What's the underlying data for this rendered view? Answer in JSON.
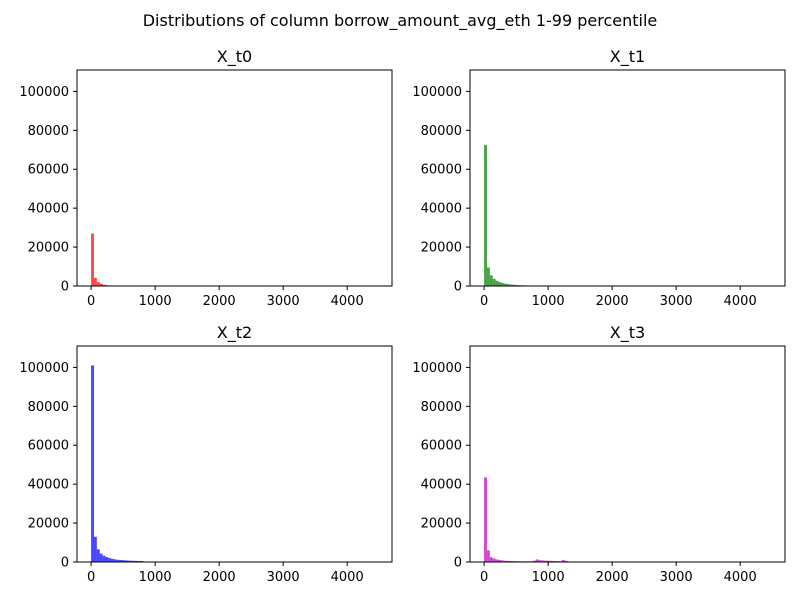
{
  "chart_data": {
    "title": "Distributions of column borrow_amount_avg_eth 1-99 percentile",
    "type": "bar",
    "xlim": [
      -220,
      4700
    ],
    "ylim": [
      0,
      111000
    ],
    "xticks": [
      0,
      1000,
      2000,
      3000,
      4000
    ],
    "yticks": [
      0,
      20000,
      40000,
      60000,
      80000,
      100000
    ],
    "bin_width": 45,
    "grid": false,
    "panels": [
      {
        "title": "X_t0",
        "color": "#ff0000",
        "x": [
          0,
          45,
          90,
          135,
          180,
          225,
          270
        ],
        "values": [
          27000,
          4200,
          2000,
          1200,
          700,
          400,
          200
        ]
      },
      {
        "title": "X_t1",
        "color": "#008000",
        "x": [
          0,
          45,
          90,
          135,
          180,
          225,
          270,
          315,
          360,
          405,
          450,
          495,
          540,
          585,
          630,
          675,
          720
        ],
        "values": [
          72500,
          9500,
          5500,
          3700,
          2700,
          2000,
          1500,
          1200,
          900,
          700,
          600,
          500,
          400,
          350,
          300,
          250,
          200
        ]
      },
      {
        "title": "X_t2",
        "color": "#0000ff",
        "x": [
          0,
          45,
          90,
          135,
          180,
          225,
          270,
          315,
          360,
          405,
          450,
          495,
          540,
          585,
          630,
          675,
          720,
          765,
          810,
          900,
          1000,
          1200,
          1500,
          2000,
          2500
        ],
        "values": [
          101000,
          13000,
          6500,
          4300,
          3200,
          2500,
          2000,
          1600,
          1300,
          1100,
          1000,
          900,
          800,
          700,
          650,
          600,
          550,
          500,
          300,
          200,
          150,
          100,
          80,
          60,
          40
        ]
      },
      {
        "title": "X_t3",
        "color": "#c000c0",
        "x": [
          0,
          45,
          90,
          135,
          180,
          225,
          270,
          315,
          360,
          405,
          450,
          495,
          540,
          585,
          630,
          675,
          720,
          765,
          810,
          855,
          900,
          945,
          990,
          1035,
          1080,
          1125,
          1170,
          1215,
          1260
        ],
        "values": [
          43500,
          6000,
          2500,
          1800,
          1300,
          1000,
          800,
          650,
          550,
          500,
          450,
          400,
          380,
          350,
          330,
          300,
          400,
          700,
          1300,
          900,
          800,
          700,
          650,
          600,
          500,
          450,
          400,
          1000,
          600
        ]
      }
    ]
  }
}
